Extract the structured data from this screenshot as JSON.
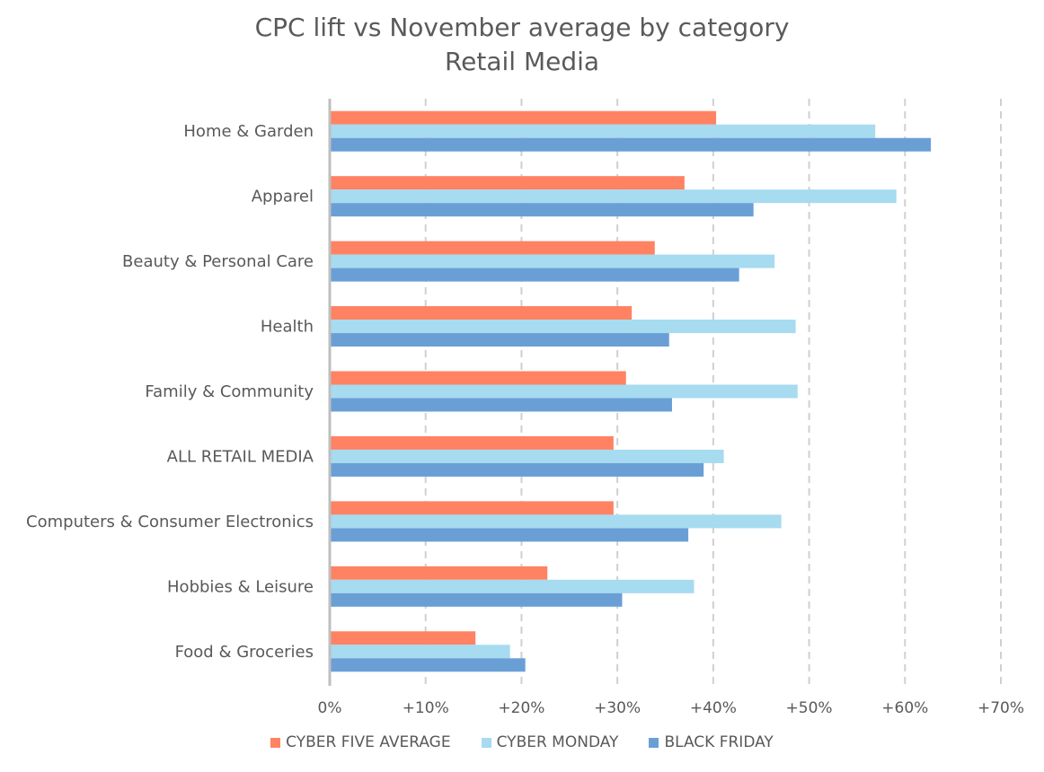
{
  "chart_data": {
    "type": "bar",
    "orientation": "horizontal",
    "title": "CPC lift vs November average by category",
    "subtitle": "Retail Media",
    "categories": [
      "Home & Garden",
      "Apparel",
      "Beauty & Personal Care",
      "Health",
      "Family & Community",
      "ALL RETAIL MEDIA",
      "Computers & Consumer Electronics",
      "Hobbies & Leisure",
      "Food & Groceries"
    ],
    "series": [
      {
        "name": "CYBER FIVE AVERAGE",
        "color": "#ff8263",
        "values": [
          40.3,
          37.0,
          33.9,
          31.5,
          30.9,
          29.6,
          29.6,
          22.7,
          15.2
        ]
      },
      {
        "name": "CYBER MONDAY",
        "color": "#a6dbf0",
        "values": [
          56.9,
          59.1,
          46.4,
          48.6,
          48.8,
          41.1,
          47.1,
          38.0,
          18.8
        ]
      },
      {
        "name": "BLACK FRIDAY",
        "color": "#6a9fd6",
        "values": [
          62.7,
          44.2,
          42.7,
          35.4,
          35.7,
          39.0,
          37.4,
          30.5,
          20.4
        ]
      }
    ],
    "xlim": [
      0,
      70
    ],
    "x_ticks": [
      "0%",
      "+10%",
      "+20%",
      "+30%",
      "+40%",
      "+50%",
      "+60%",
      "+70%"
    ],
    "grid": "vertical dashed",
    "legend_position": "bottom"
  }
}
